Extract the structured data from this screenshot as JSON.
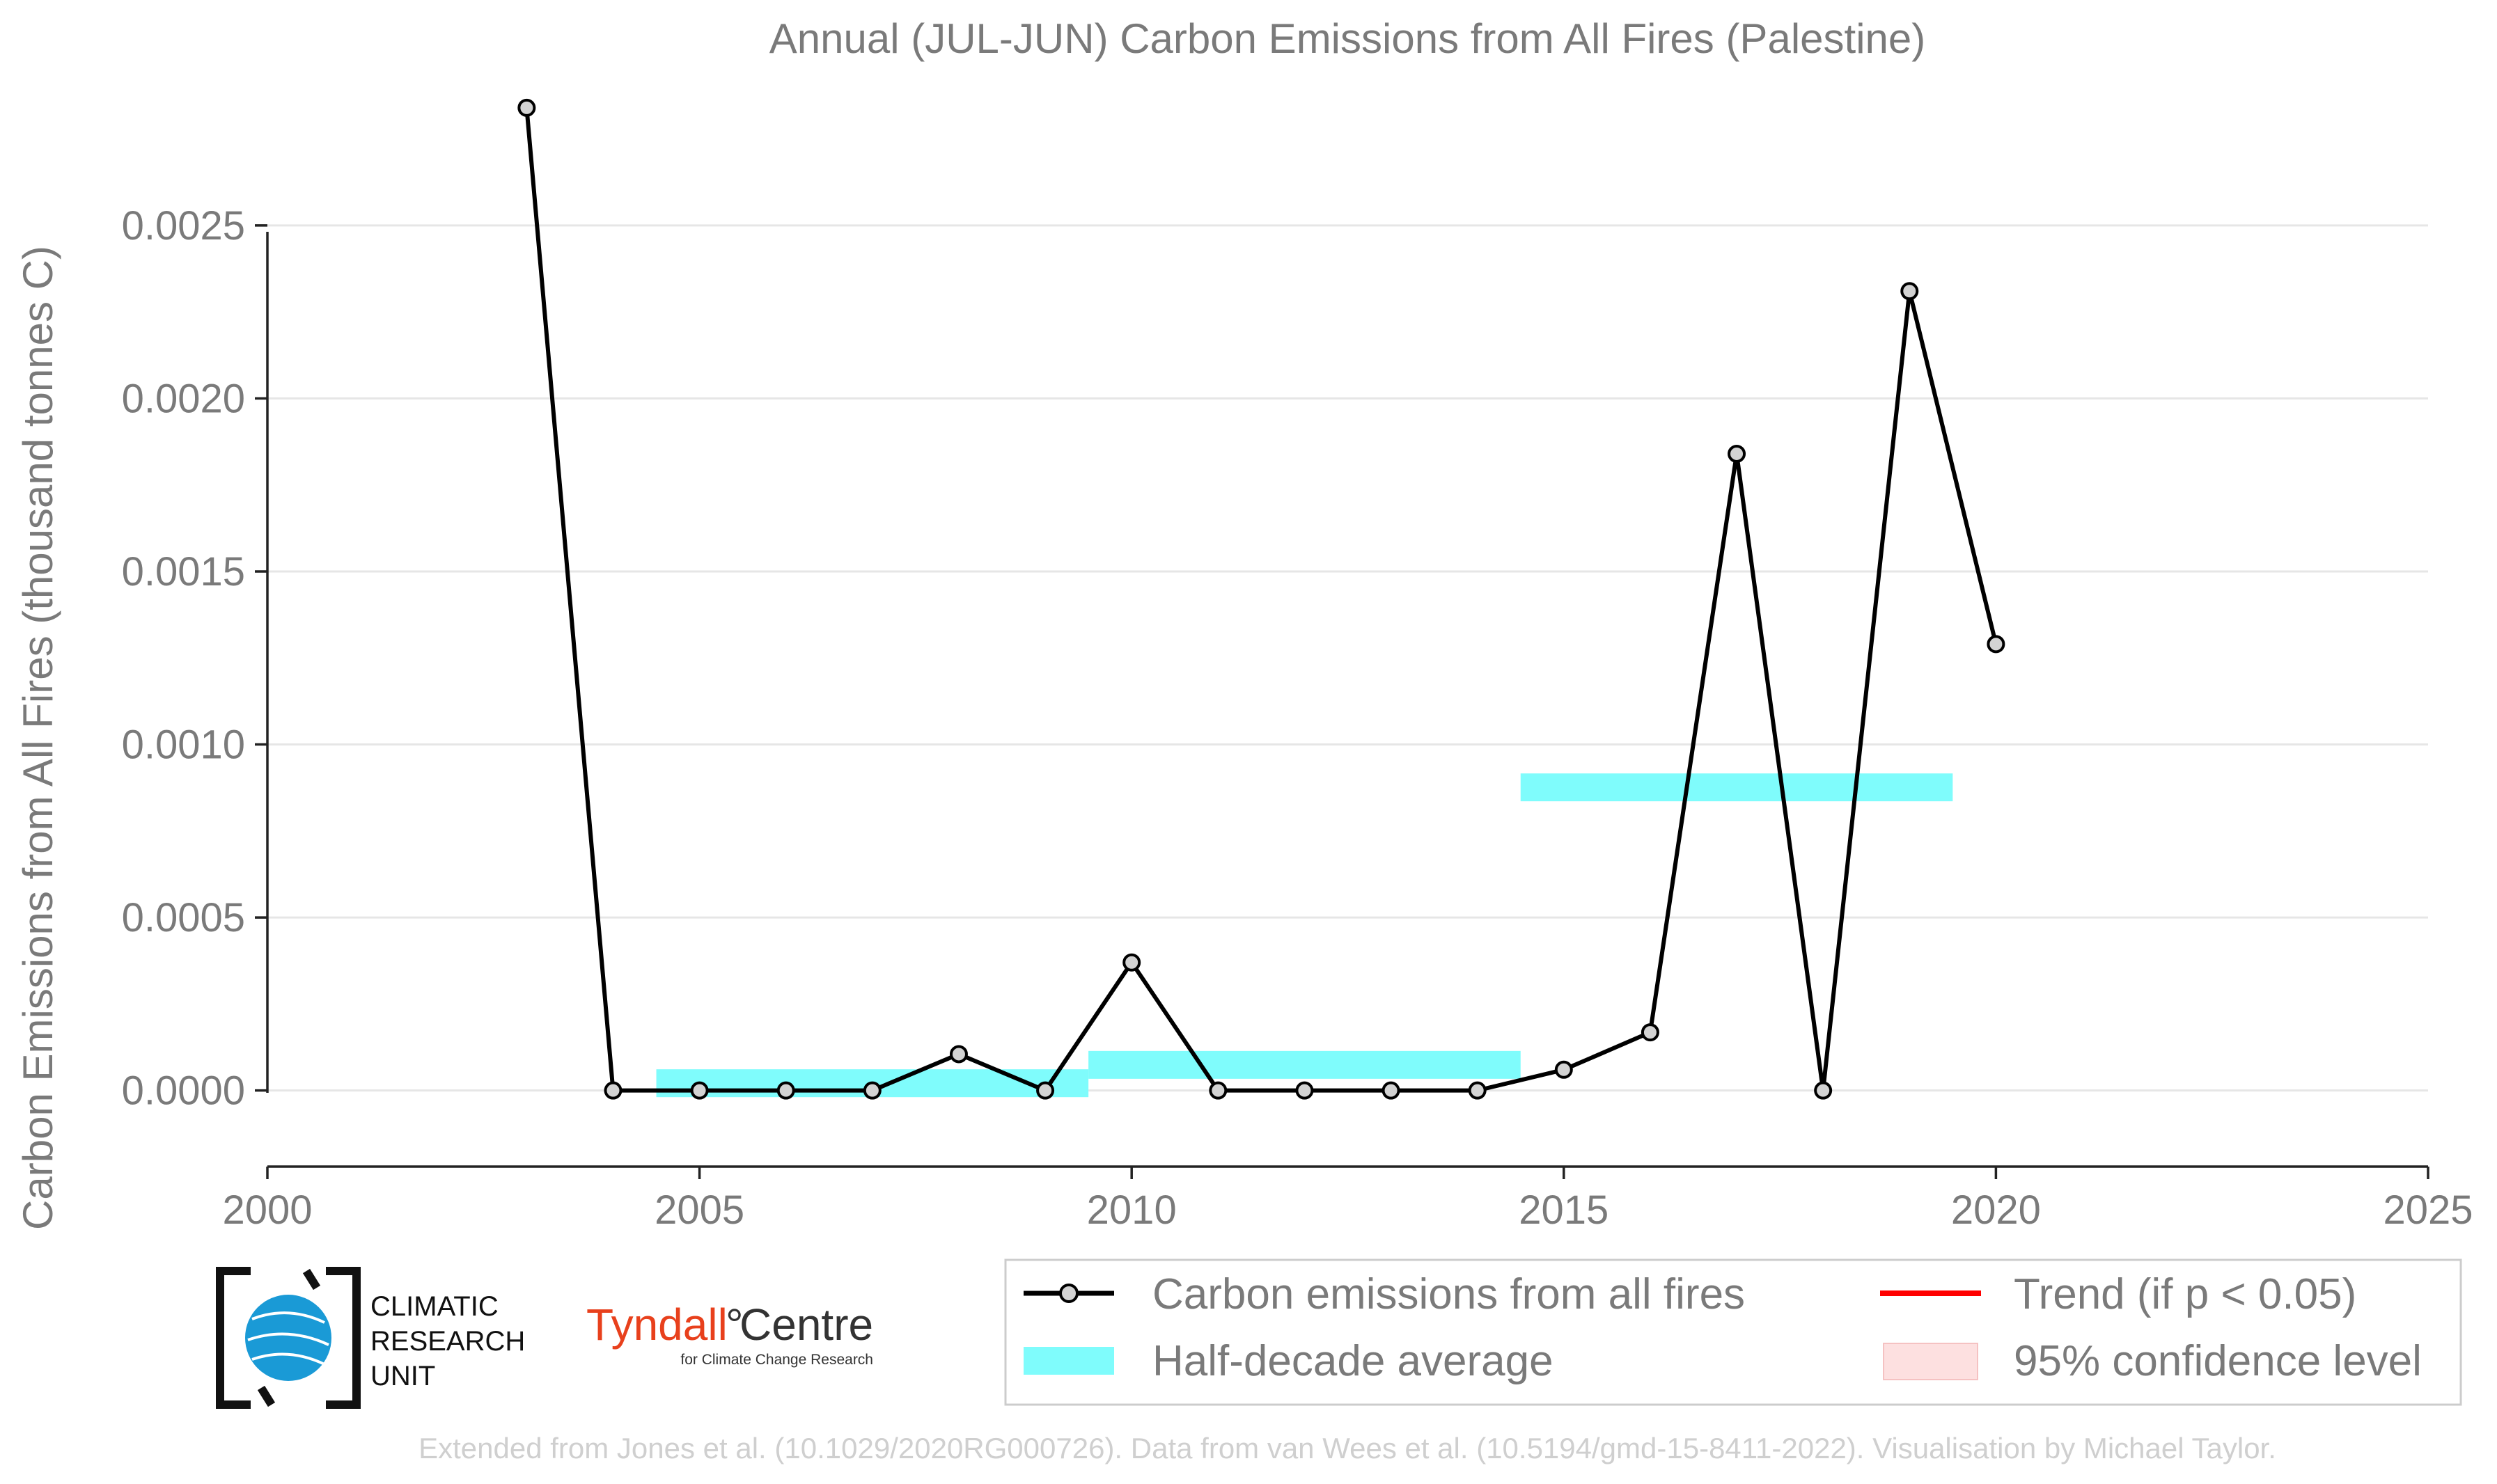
{
  "chart_data": {
    "type": "line",
    "title": "Annual (JUL-JUN) Carbon Emissions from All Fires (Palestine)",
    "xlabel": "",
    "ylabel": "Carbon Emissions from All Fires (thousand tonnes C)",
    "xlim": [
      2000,
      2025
    ],
    "ylim": [
      -0.00022,
      0.0029
    ],
    "x_ticks": [
      "2000",
      "2005",
      "2010",
      "2015",
      "2020",
      "2025"
    ],
    "y_ticks": [
      "0.0000",
      "0.0005",
      "0.0010",
      "0.0015",
      "0.0020",
      "0.0025"
    ],
    "grid": "horizontal",
    "series": [
      {
        "name": "Carbon emissions from all fires",
        "color": "#000000",
        "x": [
          2003,
          2004,
          2005,
          2006,
          2007,
          2008,
          2009,
          2010,
          2011,
          2012,
          2013,
          2014,
          2015,
          2016,
          2017,
          2018,
          2019,
          2020
        ],
        "values": [
          0.00284,
          0.0,
          0.0,
          0.0,
          0.0,
          0.000105,
          0.0,
          0.00037,
          0.0,
          0.0,
          0.0,
          0.0,
          6e-05,
          0.000168,
          0.00184,
          0.0,
          0.00231,
          0.00129
        ]
      }
    ],
    "half_decade_average": {
      "name": "Half-decade average",
      "color": "#7ffcfc",
      "segments": [
        {
          "x_start": 2004.5,
          "x_end": 2009.5,
          "value": 2.1e-05
        },
        {
          "x_start": 2009.5,
          "x_end": 2014.5,
          "value": 7.4e-05
        },
        {
          "x_start": 2014.5,
          "x_end": 2019.5,
          "value": 0.000876
        }
      ]
    },
    "legend": {
      "placement": "bottom",
      "items": [
        {
          "label": "Carbon emissions from all fires",
          "kind": "line-marker",
          "color": "#000000"
        },
        {
          "label": "Trend (if p < 0.05)",
          "kind": "line",
          "color": "#ff0000"
        },
        {
          "label": "Half-decade average",
          "kind": "band",
          "color": "#7ffcfc"
        },
        {
          "label": "95% confidence level",
          "kind": "patch",
          "color": "#fde0e0"
        }
      ]
    }
  },
  "logos": {
    "cru": {
      "line1": "CLIMATIC",
      "line2": "RESEARCH",
      "line3": "UNIT"
    },
    "tyndall": {
      "name": "Tyndall",
      "degree": "°",
      "centre": "Centre",
      "sub": "for Climate Change Research"
    }
  },
  "footer": "Extended from Jones et al. (10.1029/2020RG000726). Data from van Wees et al. (10.5194/gmd-15-8411-2022). Visualisation by Michael Taylor."
}
